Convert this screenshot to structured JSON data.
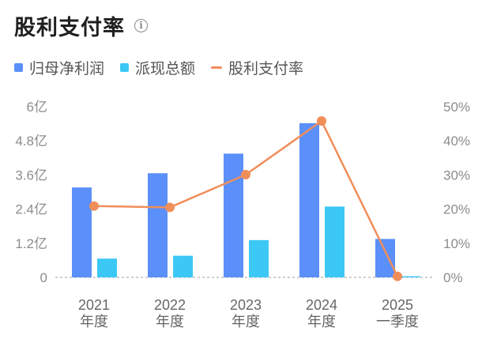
{
  "header": {
    "title": "股利支付率",
    "info_icon": "info-icon"
  },
  "legend": [
    {
      "label": "归母净利润",
      "color": "#5b8ff9",
      "shape": "square"
    },
    {
      "label": "派现总额",
      "color": "#3cc8f5",
      "shape": "square"
    },
    {
      "label": "股利支付率",
      "color": "#f08e5a",
      "shape": "line"
    }
  ],
  "chart_data": {
    "type": "bar+line",
    "categories": [
      {
        "year": "2021",
        "period": "年度"
      },
      {
        "year": "2022",
        "period": "年度"
      },
      {
        "year": "2023",
        "period": "年度"
      },
      {
        "year": "2024",
        "period": "年度"
      },
      {
        "year": "2025",
        "period": "一季度"
      }
    ],
    "series": [
      {
        "name": "归母净利润",
        "type": "bar",
        "axis": "left",
        "color": "#5b8ff9",
        "values": [
          3.16,
          3.66,
          4.35,
          5.42,
          1.35
        ]
      },
      {
        "name": "派现总额",
        "type": "bar",
        "axis": "left",
        "color": "#3cc8f5",
        "values": [
          0.66,
          0.76,
          1.31,
          2.49,
          0.04
        ]
      },
      {
        "name": "股利支付率",
        "type": "line",
        "axis": "right",
        "color": "#f08e5a",
        "values": [
          20.9,
          20.5,
          30.1,
          45.8,
          0.3
        ]
      }
    ],
    "left_axis": {
      "min": 0,
      "max": 6,
      "ticks": [
        0,
        1.2,
        2.4,
        3.6,
        4.8,
        6
      ],
      "tick_labels": [
        "0",
        "1.2亿",
        "2.4亿",
        "3.6亿",
        "4.8亿",
        "6亿"
      ]
    },
    "right_axis": {
      "min": 0,
      "max": 50,
      "ticks": [
        0,
        10,
        20,
        30,
        40,
        50
      ],
      "tick_labels": [
        "0%",
        "10%",
        "20%",
        "30%",
        "40%",
        "50%"
      ]
    },
    "grid": false,
    "legend_position": "top-left"
  }
}
